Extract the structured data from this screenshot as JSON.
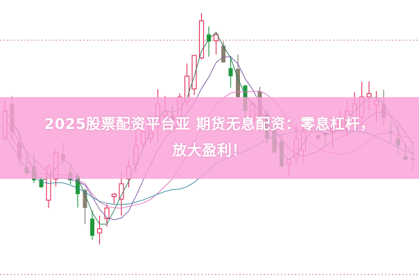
{
  "headline": {
    "line1": "2025股票配资平台亚 期货无息配资：零息杠杆，",
    "line2": "放大盈利！"
  },
  "colors": {
    "up_candle": "#e0305a",
    "down_candle": "#1f9a3c",
    "neutral_candle": "#8a8070",
    "banner": "#f9a8d8",
    "ma_lines": [
      "#2d7a5a",
      "#7a5aa0",
      "#e070c0",
      "#3a8aa0"
    ],
    "grid_dotted": "#c07070"
  },
  "chart_kind": "candlestick with moving averages (decorative, no axes)"
}
